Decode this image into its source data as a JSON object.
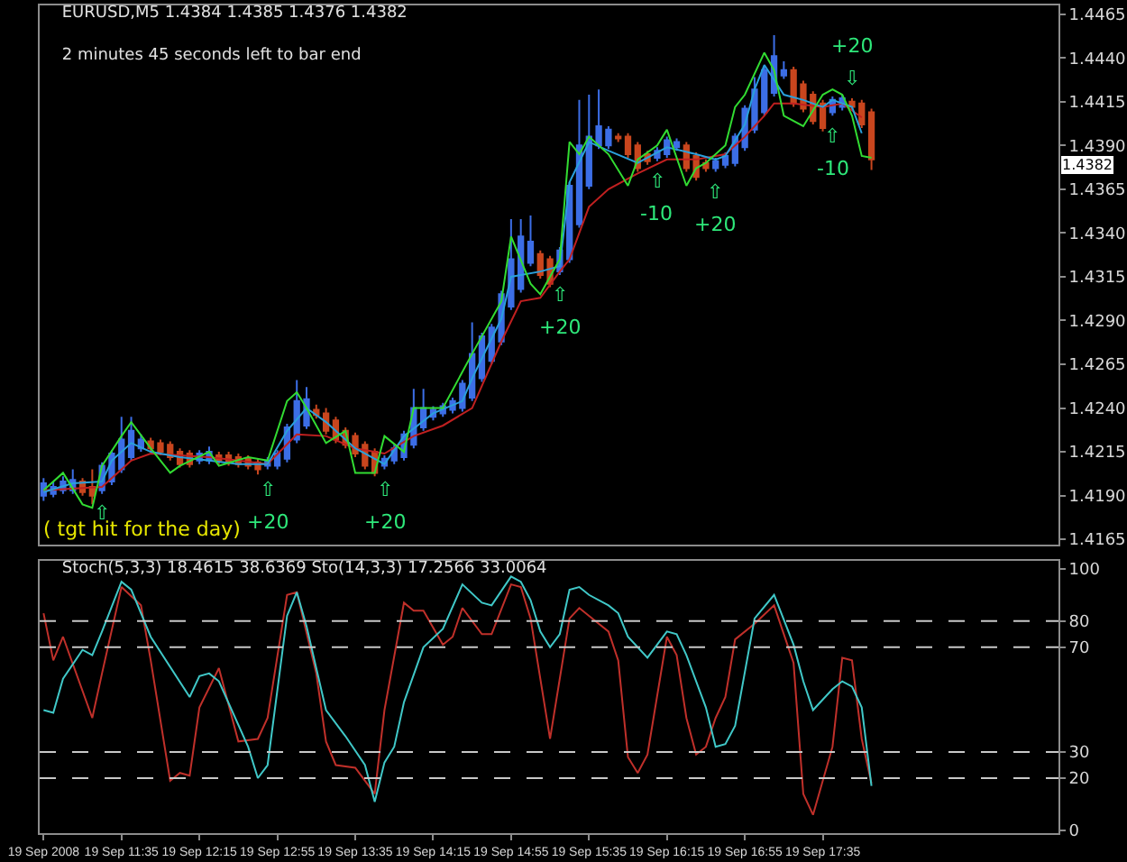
{
  "chart_data": [
    {
      "type": "candlestick",
      "title": "EURUSD,M5 1.4384 1.4385 1.4376 1.4382",
      "subtitle": "2 minutes 45 seconds left to bar end",
      "x": [
        "2008-09-19T10:55",
        "2008-09-19T11:00",
        "2008-09-19T11:05",
        "2008-09-19T11:10",
        "2008-09-19T11:15",
        "2008-09-19T11:20",
        "2008-09-19T11:25",
        "2008-09-19T11:30",
        "2008-09-19T11:35",
        "2008-09-19T11:40",
        "2008-09-19T11:45",
        "2008-09-19T11:50",
        "2008-09-19T11:55",
        "2008-09-19T12:00",
        "2008-09-19T12:05",
        "2008-09-19T12:10",
        "2008-09-19T12:15",
        "2008-09-19T12:20",
        "2008-09-19T12:25",
        "2008-09-19T12:30",
        "2008-09-19T12:35",
        "2008-09-19T12:40",
        "2008-09-19T12:45",
        "2008-09-19T12:50",
        "2008-09-19T12:55",
        "2008-09-19T13:00",
        "2008-09-19T13:05",
        "2008-09-19T13:10",
        "2008-09-19T13:15",
        "2008-09-19T13:20",
        "2008-09-19T13:25",
        "2008-09-19T13:30",
        "2008-09-19T13:35",
        "2008-09-19T13:40",
        "2008-09-19T13:45",
        "2008-09-19T13:50",
        "2008-09-19T13:55",
        "2008-09-19T14:00",
        "2008-09-19T14:05",
        "2008-09-19T14:10",
        "2008-09-19T14:15",
        "2008-09-19T14:20",
        "2008-09-19T14:25",
        "2008-09-19T14:30",
        "2008-09-19T14:35",
        "2008-09-19T14:40",
        "2008-09-19T14:45",
        "2008-09-19T14:50",
        "2008-09-19T14:55",
        "2008-09-19T15:00",
        "2008-09-19T15:05",
        "2008-09-19T15:10",
        "2008-09-19T15:15",
        "2008-09-19T15:20",
        "2008-09-19T15:25",
        "2008-09-19T15:30",
        "2008-09-19T15:35",
        "2008-09-19T15:40",
        "2008-09-19T15:45",
        "2008-09-19T15:50",
        "2008-09-19T15:55",
        "2008-09-19T16:00",
        "2008-09-19T16:05",
        "2008-09-19T16:10",
        "2008-09-19T16:15",
        "2008-09-19T16:20",
        "2008-09-19T16:25",
        "2008-09-19T16:30",
        "2008-09-19T16:35",
        "2008-09-19T16:40",
        "2008-09-19T16:45",
        "2008-09-19T16:50",
        "2008-09-19T16:55",
        "2008-09-19T17:00",
        "2008-09-19T17:05",
        "2008-09-19T17:10",
        "2008-09-19T17:15",
        "2008-09-19T17:20",
        "2008-09-19T17:25",
        "2008-09-19T17:30",
        "2008-09-19T17:35",
        "2008-09-19T17:40",
        "2008-09-19T17:45",
        "2008-09-19T17:50",
        "2008-09-19T17:55",
        "2008-09-19T18:00"
      ],
      "ohlc": [
        [
          1.419,
          1.42,
          1.4187,
          1.4197
        ],
        [
          1.4191,
          1.4198,
          1.4189,
          1.4195
        ],
        [
          1.4193,
          1.4201,
          1.4191,
          1.4198
        ],
        [
          1.4193,
          1.4205,
          1.4191,
          1.4199
        ],
        [
          1.4198,
          1.42,
          1.419,
          1.4192
        ],
        [
          1.4195,
          1.4205,
          1.4185,
          1.419
        ],
        [
          1.4193,
          1.4209,
          1.4191,
          1.4207
        ],
        [
          1.4198,
          1.4216,
          1.4196,
          1.4214
        ],
        [
          1.4205,
          1.4235,
          1.4203,
          1.4222
        ],
        [
          1.4212,
          1.4235,
          1.421,
          1.4227
        ],
        [
          1.4217,
          1.4225,
          1.4215,
          1.4222
        ],
        [
          1.4221,
          1.4223,
          1.4215,
          1.4217
        ],
        [
          1.422,
          1.4222,
          1.4213,
          1.4215
        ],
        [
          1.4219,
          1.4221,
          1.421,
          1.4212
        ],
        [
          1.4215,
          1.4217,
          1.4206,
          1.4208
        ],
        [
          1.4214,
          1.4216,
          1.4206,
          1.4208
        ],
        [
          1.421,
          1.4216,
          1.4208,
          1.4214
        ],
        [
          1.421,
          1.4218,
          1.4208,
          1.4215
        ],
        [
          1.4213,
          1.4215,
          1.4208,
          1.421
        ],
        [
          1.4213,
          1.4215,
          1.4207,
          1.4209
        ],
        [
          1.4212,
          1.4214,
          1.4206,
          1.4208
        ],
        [
          1.4211,
          1.4213,
          1.4205,
          1.4207
        ],
        [
          1.4209,
          1.4211,
          1.4202,
          1.4205
        ],
        [
          1.4207,
          1.4212,
          1.4205,
          1.421
        ],
        [
          1.4207,
          1.4216,
          1.4205,
          1.4214
        ],
        [
          1.4211,
          1.4231,
          1.4209,
          1.4229
        ],
        [
          1.4222,
          1.4256,
          1.422,
          1.4244
        ],
        [
          1.423,
          1.4252,
          1.4228,
          1.4245
        ],
        [
          1.4239,
          1.4242,
          1.4234,
          1.4236
        ],
        [
          1.4237,
          1.424,
          1.4225,
          1.4227
        ],
        [
          1.4233,
          1.4235,
          1.422,
          1.4222
        ],
        [
          1.4227,
          1.4229,
          1.4217,
          1.4219
        ],
        [
          1.4224,
          1.4226,
          1.4212,
          1.4214
        ],
        [
          1.4219,
          1.4221,
          1.4205,
          1.4207
        ],
        [
          1.4215,
          1.4217,
          1.4201,
          1.4203
        ],
        [
          1.4207,
          1.4213,
          1.4205,
          1.4211
        ],
        [
          1.421,
          1.4219,
          1.4208,
          1.4217
        ],
        [
          1.4212,
          1.4227,
          1.421,
          1.4225
        ],
        [
          1.4219,
          1.4251,
          1.4217,
          1.424
        ],
        [
          1.4229,
          1.4251,
          1.4227,
          1.424
        ],
        [
          1.4235,
          1.4241,
          1.4233,
          1.4239
        ],
        [
          1.4237,
          1.4243,
          1.4235,
          1.4241
        ],
        [
          1.4239,
          1.4246,
          1.4237,
          1.4244
        ],
        [
          1.424,
          1.4256,
          1.4238,
          1.4254
        ],
        [
          1.4246,
          1.4289,
          1.4244,
          1.4271
        ],
        [
          1.4257,
          1.4283,
          1.4255,
          1.4281
        ],
        [
          1.4267,
          1.4288,
          1.4265,
          1.4286
        ],
        [
          1.4278,
          1.4307,
          1.4276,
          1.4305
        ],
        [
          1.4298,
          1.4348,
          1.4296,
          1.4325
        ],
        [
          1.4308,
          1.4348,
          1.4306,
          1.4338
        ],
        [
          1.4323,
          1.435,
          1.4321,
          1.4335
        ],
        [
          1.4328,
          1.433,
          1.4314,
          1.4316
        ],
        [
          1.4325,
          1.4327,
          1.4309,
          1.4311
        ],
        [
          1.4318,
          1.4332,
          1.4316,
          1.433
        ],
        [
          1.4325,
          1.4369,
          1.4323,
          1.4367
        ],
        [
          1.4345,
          1.4416,
          1.4343,
          1.439
        ],
        [
          1.4367,
          1.4419,
          1.4365,
          1.4395
        ],
        [
          1.439,
          1.4422,
          1.4388,
          1.4401
        ],
        [
          1.439,
          1.4401,
          1.4388,
          1.4399
        ],
        [
          1.4395,
          1.4397,
          1.4392,
          1.4394
        ],
        [
          1.4395,
          1.4397,
          1.4383,
          1.4385
        ],
        [
          1.439,
          1.4392,
          1.4375,
          1.4377
        ],
        [
          1.4385,
          1.4387,
          1.4379,
          1.4381
        ],
        [
          1.4383,
          1.4389,
          1.4381,
          1.4387
        ],
        [
          1.4385,
          1.4395,
          1.4383,
          1.4393
        ],
        [
          1.4389,
          1.4394,
          1.4387,
          1.4392
        ],
        [
          1.439,
          1.4392,
          1.4375,
          1.4377
        ],
        [
          1.4384,
          1.4386,
          1.437,
          1.4372
        ],
        [
          1.438,
          1.4382,
          1.4375,
          1.4377
        ],
        [
          1.4377,
          1.4383,
          1.4375,
          1.4381
        ],
        [
          1.4379,
          1.4386,
          1.4377,
          1.4384
        ],
        [
          1.438,
          1.4397,
          1.4378,
          1.4395
        ],
        [
          1.4389,
          1.4413,
          1.4387,
          1.4411
        ],
        [
          1.4399,
          1.4429,
          1.4397,
          1.4422
        ],
        [
          1.4409,
          1.4435,
          1.4407,
          1.4433
        ],
        [
          1.442,
          1.4453,
          1.4418,
          1.4441
        ],
        [
          1.443,
          1.4438,
          1.4428,
          1.4433
        ],
        [
          1.4433,
          1.4435,
          1.4412,
          1.4414
        ],
        [
          1.4425,
          1.4427,
          1.4409,
          1.4411
        ],
        [
          1.4419,
          1.4421,
          1.4402,
          1.4404
        ],
        [
          1.4414,
          1.4416,
          1.4398,
          1.44
        ],
        [
          1.4409,
          1.4418,
          1.4407,
          1.4416
        ],
        [
          1.4412,
          1.4419,
          1.441,
          1.4417
        ],
        [
          1.4415,
          1.4417,
          1.441,
          1.4412
        ],
        [
          1.4414,
          1.4416,
          1.44,
          1.4402
        ],
        [
          1.4409,
          1.4411,
          1.4376,
          1.4382
        ]
      ],
      "colors": [
        "#3c6ee6",
        "#3c6ee6",
        "#3c6ee6",
        "#3c6ee6",
        "#c8461e",
        "#c8461e",
        "#3c6ee6",
        "#3c6ee6",
        "#3c6ee6",
        "#3c6ee6",
        "#3c6ee6",
        "#c8461e",
        "#c8461e",
        "#c8461e",
        "#c8461e",
        "#c8461e",
        "#3c6ee6",
        "#3c6ee6",
        "#c8461e",
        "#c8461e",
        "#c8461e",
        "#c8461e",
        "#c8461e",
        "#3c6ee6",
        "#3c6ee6",
        "#3c6ee6",
        "#3c6ee6",
        "#3c6ee6",
        "#c8461e",
        "#c8461e",
        "#c8461e",
        "#c8461e",
        "#c8461e",
        "#c8461e",
        "#c8461e",
        "#3c6ee6",
        "#3c6ee6",
        "#3c6ee6",
        "#3c6ee6",
        "#3c6ee6",
        "#3c6ee6",
        "#3c6ee6",
        "#3c6ee6",
        "#3c6ee6",
        "#3c6ee6",
        "#3c6ee6",
        "#3c6ee6",
        "#3c6ee6",
        "#3c6ee6",
        "#3c6ee6",
        "#3c6ee6",
        "#c8461e",
        "#c8461e",
        "#3c6ee6",
        "#3c6ee6",
        "#3c6ee6",
        "#3c6ee6",
        "#3c6ee6",
        "#3c6ee6",
        "#c8461e",
        "#c8461e",
        "#c8461e",
        "#c8461e",
        "#3c6ee6",
        "#3c6ee6",
        "#3c6ee6",
        "#c8461e",
        "#c8461e",
        "#c8461e",
        "#3c6ee6",
        "#3c6ee6",
        "#3c6ee6",
        "#3c6ee6",
        "#3c6ee6",
        "#3c6ee6",
        "#3c6ee6",
        "#3c6ee6",
        "#c8461e",
        "#c8461e",
        "#c8461e",
        "#c8461e",
        "#3c6ee6",
        "#3c6ee6",
        "#c8461e",
        "#c8461e",
        "#c8461e"
      ],
      "series": [
        {
          "type": "line",
          "color": "#c02020",
          "x": [
            "2008-09-19T10:55",
            "2008-09-19T11:25",
            "2008-09-19T11:40",
            "2008-09-19T11:50",
            "2008-09-19T12:20",
            "2008-09-19T12:50",
            "2008-09-19T13:05",
            "2008-09-19T13:20",
            "2008-09-19T13:35",
            "2008-09-19T13:50",
            "2008-09-19T14:05",
            "2008-09-19T14:20",
            "2008-09-19T14:35",
            "2008-09-19T14:50",
            "2008-09-19T15:00",
            "2008-09-19T15:10",
            "2008-09-19T15:20",
            "2008-09-19T15:25",
            "2008-09-19T15:35",
            "2008-09-19T15:45",
            "2008-09-19T16:00",
            "2008-09-19T16:15",
            "2008-09-19T16:30",
            "2008-09-19T16:45",
            "2008-09-19T16:55",
            "2008-09-19T17:05",
            "2008-09-19T17:10",
            "2008-09-19T17:20",
            "2008-09-19T17:35",
            "2008-09-19T17:45",
            "2008-09-19T17:55"
          ],
          "values": [
            1.4193,
            1.4195,
            1.421,
            1.4214,
            1.4212,
            1.4208,
            1.4225,
            1.4224,
            1.4217,
            1.4214,
            1.4224,
            1.423,
            1.424,
            1.4278,
            1.4301,
            1.4303,
            1.4318,
            1.4325,
            1.4355,
            1.4365,
            1.4374,
            1.4382,
            1.4382,
            1.4385,
            1.4395,
            1.4407,
            1.4414,
            1.4414,
            1.4412,
            1.4414,
            1.4406
          ]
        },
        {
          "type": "line",
          "color": "#2aa0dc",
          "x": [
            "2008-09-19T10:55",
            "2008-09-19T11:10",
            "2008-09-19T11:25",
            "2008-09-19T11:30",
            "2008-09-19T11:40",
            "2008-09-19T11:50",
            "2008-09-19T12:05",
            "2008-09-19T12:20",
            "2008-09-19T12:35",
            "2008-09-19T12:50",
            "2008-09-19T13:00",
            "2008-09-19T13:10",
            "2008-09-19T13:20",
            "2008-09-19T13:35",
            "2008-09-19T13:50",
            "2008-09-19T14:00",
            "2008-09-19T14:15",
            "2008-09-19T14:30",
            "2008-09-19T14:35",
            "2008-09-19T14:50",
            "2008-09-19T14:55",
            "2008-09-19T15:10",
            "2008-09-19T15:20",
            "2008-09-19T15:25",
            "2008-09-19T15:35",
            "2008-09-19T15:45",
            "2008-09-19T16:00",
            "2008-09-19T16:15",
            "2008-09-19T16:30",
            "2008-09-19T16:40",
            "2008-09-19T16:45",
            "2008-09-19T16:55",
            "2008-09-19T17:00",
            "2008-09-19T17:05",
            "2008-09-19T17:15",
            "2008-09-19T17:25",
            "2008-09-19T17:35",
            "2008-09-19T17:40",
            "2008-09-19T17:50",
            "2008-09-19T17:55"
          ],
          "values": [
            1.4192,
            1.4197,
            1.4198,
            1.421,
            1.422,
            1.4215,
            1.4212,
            1.421,
            1.4208,
            1.4208,
            1.4227,
            1.424,
            1.4232,
            1.4217,
            1.4208,
            1.4224,
            1.4237,
            1.4244,
            1.4257,
            1.4291,
            1.4315,
            1.4318,
            1.4321,
            1.4369,
            1.4392,
            1.4387,
            1.438,
            1.4389,
            1.4385,
            1.4382,
            1.4384,
            1.4402,
            1.4422,
            1.4436,
            1.4419,
            1.4416,
            1.4412,
            1.4416,
            1.4412,
            1.4397
          ]
        },
        {
          "type": "line",
          "color": "#32dc32",
          "x": [
            "2008-09-19T10:55",
            "2008-09-19T11:05",
            "2008-09-19T11:15",
            "2008-09-19T11:20",
            "2008-09-19T11:25",
            "2008-09-19T11:35",
            "2008-09-19T11:40",
            "2008-09-19T11:50",
            "2008-09-19T12:00",
            "2008-09-19T12:05",
            "2008-09-19T12:20",
            "2008-09-19T12:25",
            "2008-09-19T12:40",
            "2008-09-19T12:50",
            "2008-09-19T13:00",
            "2008-09-19T13:05",
            "2008-09-19T13:10",
            "2008-09-19T13:20",
            "2008-09-19T13:30",
            "2008-09-19T13:35",
            "2008-09-19T13:45",
            "2008-09-19T13:50",
            "2008-09-19T14:00",
            "2008-09-19T14:05",
            "2008-09-19T14:20",
            "2008-09-19T14:35",
            "2008-09-19T14:50",
            "2008-09-19T14:55",
            "2008-09-19T15:05",
            "2008-09-19T15:10",
            "2008-09-19T15:20",
            "2008-09-19T15:25",
            "2008-09-19T15:30",
            "2008-09-19T15:35",
            "2008-09-19T15:45",
            "2008-09-19T15:55",
            "2008-09-19T16:00",
            "2008-09-19T16:10",
            "2008-09-19T16:15",
            "2008-09-19T16:25",
            "2008-09-19T16:30",
            "2008-09-19T16:35",
            "2008-09-19T16:45",
            "2008-09-19T16:50",
            "2008-09-19T16:55",
            "2008-09-19T17:05",
            "2008-09-19T17:10",
            "2008-09-19T17:15",
            "2008-09-19T17:25",
            "2008-09-19T17:35",
            "2008-09-19T17:40",
            "2008-09-19T17:45",
            "2008-09-19T17:50",
            "2008-09-19T17:55",
            "2008-09-19T18:00"
          ],
          "values": [
            1.4193,
            1.4203,
            1.4185,
            1.4183,
            1.4207,
            1.4224,
            1.4232,
            1.4217,
            1.4203,
            1.4207,
            1.4215,
            1.4207,
            1.4212,
            1.421,
            1.4244,
            1.4249,
            1.424,
            1.422,
            1.4227,
            1.4203,
            1.4203,
            1.4224,
            1.4215,
            1.424,
            1.424,
            1.4271,
            1.4301,
            1.4338,
            1.4311,
            1.4305,
            1.4325,
            1.4392,
            1.4385,
            1.4395,
            1.4385,
            1.4367,
            1.4382,
            1.439,
            1.4399,
            1.4367,
            1.4377,
            1.438,
            1.439,
            1.4412,
            1.4419,
            1.4443,
            1.4433,
            1.4407,
            1.4401,
            1.4419,
            1.4422,
            1.4419,
            1.4407,
            1.4384,
            1.4383
          ]
        }
      ],
      "annotations": [
        {
          "text": "⇧",
          "x": "2008-09-19T11:25",
          "y": 1.4191
        },
        {
          "text": "⇧",
          "x": "2008-09-19T12:50",
          "y": 1.4205
        },
        {
          "text": "+20",
          "x": "2008-09-19T12:50",
          "y": 1.4205
        },
        {
          "text": "⇧",
          "x": "2008-09-19T13:50",
          "y": 1.4205
        },
        {
          "text": "+20",
          "x": "2008-09-19T13:50",
          "y": 1.4205
        },
        {
          "text": "⇧",
          "x": "2008-09-19T15:20",
          "y": 1.4316
        },
        {
          "text": "+20",
          "x": "2008-09-19T15:20",
          "y": 1.4316
        },
        {
          "text": "⇧",
          "x": "2008-09-19T16:10",
          "y": 1.4381
        },
        {
          "text": "-10",
          "x": "2008-09-19T16:10",
          "y": 1.4381
        },
        {
          "text": "⇧",
          "x": "2008-09-19T16:40",
          "y": 1.4375
        },
        {
          "text": "+20",
          "x": "2008-09-19T16:40",
          "y": 1.4375
        },
        {
          "text": "⇩",
          "x": "2008-09-19T17:50",
          "y": 1.4417
        },
        {
          "text": "+20",
          "x": "2008-09-19T17:50",
          "y": 1.4417
        },
        {
          "text": "⇧",
          "x": "2008-09-19T17:40",
          "y": 1.4407
        },
        {
          "text": "-10",
          "x": "2008-09-19T17:40",
          "y": 1.4407
        },
        "1.4382",
        "( tgt hit for the day)"
      ],
      "xlim": [
        "2008-09-19T10:53",
        "2008-09-19T19:36"
      ],
      "ylim": [
        1.4162,
        1.447
      ],
      "yticks": [
        1.4165,
        {
          "value": 1.419,
          "label": "1.4190"
        },
        1.4215,
        {
          "value": 1.424,
          "label": "1.4240"
        },
        1.4265,
        {
          "value": 1.429,
          "label": "1.4290"
        },
        1.4315,
        {
          "value": 1.434,
          "label": "1.4340"
        },
        1.4365,
        {
          "value": 1.439,
          "label": "1.4390"
        },
        1.4415,
        {
          "value": 1.444,
          "label": "1.4440"
        },
        1.4465
      ],
      "tick_labels": "y"
    },
    {
      "type": "line",
      "title": "Stoch(5,3,3) 18.4615 38.6369 Sto(14,3,3) 17.2566 33.0064",
      "series": [
        {
          "color": "#c0302a",
          "x": [
            "2008-09-19T10:55",
            "2008-09-19T11:00",
            "2008-09-19T11:05",
            "2008-09-19T11:20",
            "2008-09-19T11:25",
            "2008-09-19T11:35",
            "2008-09-19T11:45",
            "2008-09-19T11:50",
            "2008-09-19T12:00",
            "2008-09-19T12:05",
            "2008-09-19T12:10",
            "2008-09-19T12:15",
            "2008-09-19T12:25",
            "2008-09-19T12:35",
            "2008-09-19T12:45",
            "2008-09-19T12:50",
            "2008-09-19T13:00",
            "2008-09-19T13:05",
            "2008-09-19T13:15",
            "2008-09-19T13:20",
            "2008-09-19T13:25",
            "2008-09-19T13:35",
            "2008-09-19T13:45",
            "2008-09-19T13:50",
            "2008-09-19T14:00",
            "2008-09-19T14:05",
            "2008-09-19T14:10",
            "2008-09-19T14:20",
            "2008-09-19T14:25",
            "2008-09-19T14:30",
            "2008-09-19T14:40",
            "2008-09-19T14:45",
            "2008-09-19T14:55",
            "2008-09-19T15:00",
            "2008-09-19T15:05",
            "2008-09-19T15:15",
            "2008-09-19T15:25",
            "2008-09-19T15:30",
            "2008-09-19T15:40",
            "2008-09-19T15:45",
            "2008-09-19T15:50",
            "2008-09-19T15:55",
            "2008-09-19T16:00",
            "2008-09-19T16:05",
            "2008-09-19T16:15",
            "2008-09-19T16:20",
            "2008-09-19T16:25",
            "2008-09-19T16:30",
            "2008-09-19T16:35",
            "2008-09-19T16:40",
            "2008-09-19T16:45",
            "2008-09-19T16:50",
            "2008-09-19T17:00",
            "2008-09-19T17:10",
            "2008-09-19T17:20",
            "2008-09-19T17:25",
            "2008-09-19T17:30",
            "2008-09-19T17:40",
            "2008-09-19T17:45",
            "2008-09-19T17:50",
            "2008-09-19T17:55",
            "2008-09-19T18:00"
          ],
          "values": [
            83,
            65,
            74,
            43,
            60,
            93,
            86,
            65,
            19,
            22,
            21,
            47,
            62,
            34,
            35,
            43,
            90,
            91,
            60,
            34,
            25,
            24,
            14,
            46,
            87,
            84,
            84,
            71,
            74,
            85,
            75,
            75,
            94,
            93,
            81,
            35,
            81,
            85,
            79,
            76,
            65,
            28,
            22,
            29,
            74,
            67,
            43,
            29,
            32,
            43,
            51,
            73,
            79,
            86,
            64,
            14,
            6,
            32,
            66,
            65,
            35,
            18
          ]
        },
        {
          "color": "#40c8c8",
          "x": [
            "2008-09-19T10:55",
            "2008-09-19T11:00",
            "2008-09-19T11:05",
            "2008-09-19T11:15",
            "2008-09-19T11:20",
            "2008-09-19T11:25",
            "2008-09-19T11:35",
            "2008-09-19T11:40",
            "2008-09-19T11:50",
            "2008-09-19T12:10",
            "2008-09-19T12:15",
            "2008-09-19T12:20",
            "2008-09-19T12:25",
            "2008-09-19T12:40",
            "2008-09-19T12:45",
            "2008-09-19T12:50",
            "2008-09-19T13:00",
            "2008-09-19T13:05",
            "2008-09-19T13:10",
            "2008-09-19T13:20",
            "2008-09-19T13:30",
            "2008-09-19T13:40",
            "2008-09-19T13:45",
            "2008-09-19T13:50",
            "2008-09-19T13:55",
            "2008-09-19T14:00",
            "2008-09-19T14:10",
            "2008-09-19T14:20",
            "2008-09-19T14:30",
            "2008-09-19T14:40",
            "2008-09-19T14:45",
            "2008-09-19T14:55",
            "2008-09-19T15:00",
            "2008-09-19T15:05",
            "2008-09-19T15:10",
            "2008-09-19T15:15",
            "2008-09-19T15:20",
            "2008-09-19T15:25",
            "2008-09-19T15:30",
            "2008-09-19T15:35",
            "2008-09-19T15:45",
            "2008-09-19T15:50",
            "2008-09-19T15:55",
            "2008-09-19T16:05",
            "2008-09-19T16:15",
            "2008-09-19T16:20",
            "2008-09-19T16:25",
            "2008-09-19T16:35",
            "2008-09-19T16:40",
            "2008-09-19T16:45",
            "2008-09-19T16:50",
            "2008-09-19T17:00",
            "2008-09-19T17:10",
            "2008-09-19T17:20",
            "2008-09-19T17:25",
            "2008-09-19T17:30",
            "2008-09-19T17:40",
            "2008-09-19T17:45",
            "2008-09-19T17:50",
            "2008-09-19T17:55",
            "2008-09-19T18:00"
          ],
          "values": [
            46,
            45,
            58,
            69,
            67,
            76,
            95,
            92,
            74,
            51,
            59,
            60,
            57,
            32,
            20,
            25,
            82,
            91,
            78,
            46,
            36,
            25,
            11,
            26,
            32,
            49,
            70,
            77,
            94,
            87,
            86,
            97,
            95,
            88,
            76,
            70,
            75,
            92,
            93,
            90,
            86,
            83,
            74,
            66,
            76,
            75,
            67,
            47,
            32,
            33,
            40,
            81,
            90,
            71,
            57,
            46,
            54,
            57,
            55,
            47,
            17
          ]
        }
      ],
      "ref_lines": [
        {
          "axis": "y",
          "value": 80,
          "line_style": "dashed",
          "color": "#c8c8c8"
        },
        {
          "axis": "y",
          "value": 70,
          "line_style": "dashed",
          "color": "#c8c8c8"
        },
        {
          "axis": "y",
          "value": 30,
          "line_style": "dashed",
          "color": "#c8c8c8"
        },
        {
          "axis": "y",
          "value": 20,
          "line_style": "dashed",
          "color": "#c8c8c8"
        }
      ],
      "xlim": [
        "2008-09-19T10:53",
        "2008-09-19T19:36"
      ],
      "xticks": [
        {
          "value": "2008-09-19T10:55",
          "label": "19 Sep 2008"
        },
        {
          "value": "2008-09-19T11:35",
          "label": "19 Sep 11:35"
        },
        {
          "value": "2008-09-19T12:15",
          "label": "19 Sep 12:15"
        },
        {
          "value": "2008-09-19T12:55",
          "label": "19 Sep 12:55"
        },
        {
          "value": "2008-09-19T13:35",
          "label": "19 Sep 13:35"
        },
        {
          "value": "2008-09-19T14:15",
          "label": "19 Sep 14:15"
        },
        {
          "value": "2008-09-19T14:55",
          "label": "19 Sep 14:55"
        },
        {
          "value": "2008-09-19T15:35",
          "label": "19 Sep 15:35"
        },
        {
          "value": "2008-09-19T16:15",
          "label": "19 Sep 16:15"
        },
        {
          "value": "2008-09-19T16:55",
          "label": "19 Sep 16:55"
        },
        {
          "value": "2008-09-19T17:35",
          "label": "19 Sep 17:35"
        }
      ],
      "ylim": [
        -1,
        103
      ],
      "yticks": [
        0,
        20,
        30,
        70,
        80,
        100
      ]
    }
  ]
}
